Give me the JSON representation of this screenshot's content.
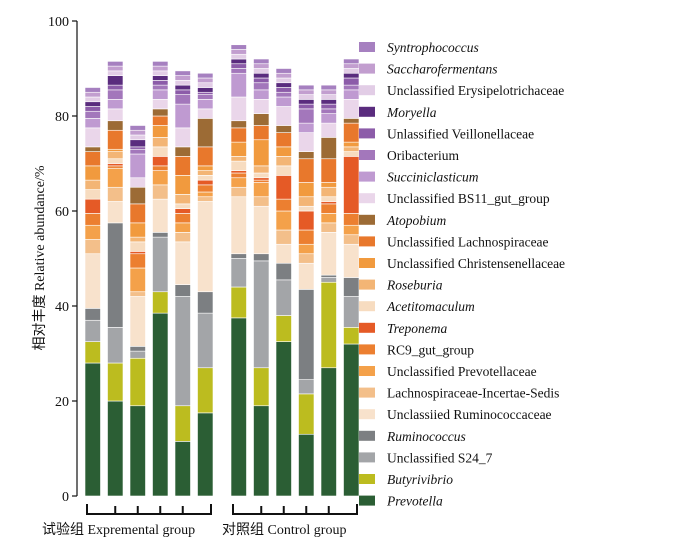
{
  "chart_data": {
    "type": "bar",
    "stacked": true,
    "ylabel": "相对丰度  Relative abundance/%",
    "ylim": [
      0,
      100
    ],
    "yticks": [
      0,
      20,
      40,
      60,
      80,
      100
    ],
    "groups": [
      {
        "label": "试验组  Expremental group",
        "bars": 6
      },
      {
        "label": "对照组  Control group",
        "bars": 6
      }
    ],
    "legend_position": "right",
    "series": [
      {
        "name": "Prevotella",
        "italic": true,
        "color": "#2b5e34",
        "values": [
          28,
          20,
          19,
          38.5,
          11.5,
          17.5,
          37.5,
          19,
          32.5,
          13,
          27,
          32
        ]
      },
      {
        "name": "Butyrivibrio",
        "italic": true,
        "color": "#bcbc1f",
        "values": [
          4.5,
          8,
          10,
          4.5,
          7.5,
          9.5,
          6.5,
          8,
          5.5,
          8.5,
          18,
          3.5
        ]
      },
      {
        "name": "Unclassified S24_7",
        "italic": false,
        "color": "#a3a5a8",
        "values": [
          4.5,
          7.5,
          1.5,
          11.5,
          23,
          11.5,
          6,
          22.5,
          7.5,
          3,
          1,
          6.5
        ]
      },
      {
        "name": "Ruminococcus",
        "italic": true,
        "color": "#7c7f82",
        "values": [
          2.5,
          22,
          1,
          1,
          2.5,
          4.5,
          1,
          1.5,
          3.5,
          19,
          0.5,
          4
        ]
      },
      {
        "name": "Unclassiied Ruminococcaceae",
        "italic": false,
        "color": "#f8e2cc",
        "values": [
          11.5,
          4.5,
          10.5,
          7,
          9,
          19,
          12,
          10,
          4,
          5.5,
          9,
          7
        ]
      },
      {
        "name": "Lachnospiraceae-Incertae-Sedis",
        "italic": false,
        "color": "#f3bf8a",
        "values": [
          3,
          3,
          1,
          3,
          2,
          1,
          2,
          2,
          3,
          2,
          2,
          2
        ]
      },
      {
        "name": "Unclassified Prevotellaceae",
        "italic": false,
        "color": "#f4a14a",
        "values": [
          3,
          4,
          5,
          3,
          2,
          1,
          2,
          3,
          4,
          2,
          2,
          2
        ]
      },
      {
        "name": "RC9_gut_group",
        "italic": false,
        "color": "#ec7f30",
        "values": [
          2.5,
          0.5,
          3,
          1,
          2,
          1.5,
          1,
          0.5,
          2.5,
          3,
          2,
          2.5
        ]
      },
      {
        "name": "Treponema",
        "italic": true,
        "color": "#e55a26",
        "values": [
          3,
          0.5,
          0.5,
          2,
          1,
          1,
          0.5,
          0.5,
          5,
          4,
          0.5,
          12
        ]
      },
      {
        "name": "Acetitomaculum",
        "italic": true,
        "color": "#f7dcc0",
        "values": [
          2,
          1,
          2,
          2,
          1,
          1,
          2,
          1,
          2,
          1,
          1,
          1
        ]
      },
      {
        "name": "Roseburia",
        "italic": true,
        "color": "#f3b575",
        "values": [
          2,
          1.5,
          1,
          2,
          2,
          1,
          1,
          1.5,
          2,
          2,
          2,
          1
        ]
      },
      {
        "name": "Unclassified Christensenellaceae",
        "italic": false,
        "color": "#f19a3e",
        "values": [
          3,
          0.5,
          3,
          2.5,
          4,
          1,
          3,
          5.5,
          2,
          3,
          1,
          1
        ]
      },
      {
        "name": "Unclassified Lachnospiraceae",
        "italic": false,
        "color": "#e8782c",
        "values": [
          3,
          4,
          4,
          2,
          4,
          4,
          3,
          3,
          3,
          5,
          5,
          4
        ]
      },
      {
        "name": "Atopobium",
        "italic": true,
        "color": "#9c6b35",
        "values": [
          1,
          2,
          3.5,
          1.5,
          2,
          6,
          1.5,
          2.5,
          1.5,
          1.5,
          4.5,
          1
        ]
      },
      {
        "name": "Unclassified BS11_gut_group",
        "italic": false,
        "color": "#ead6ea",
        "values": [
          4,
          2.5,
          2,
          2,
          4,
          2,
          5,
          3,
          4,
          4,
          3,
          4
        ]
      },
      {
        "name": "Succiniclasticum",
        "italic": true,
        "color": "#bf9ad1",
        "values": [
          2,
          2,
          5,
          2,
          5,
          2,
          5,
          2,
          2,
          2,
          2,
          2
        ]
      },
      {
        "name": "Oribacterium",
        "italic": false,
        "color": "#a377bb",
        "values": [
          1.5,
          2,
          1,
          1,
          2,
          1,
          1,
          1.5,
          1,
          3,
          1,
          1
        ]
      },
      {
        "name": "Unlassified Veillonellaceae",
        "italic": false,
        "color": "#8c5ca9",
        "values": [
          1,
          1,
          0.5,
          1,
          1,
          0.5,
          1,
          1,
          1,
          1,
          1,
          1.5
        ]
      },
      {
        "name": "Moryella",
        "italic": true,
        "color": "#5a2c7e",
        "values": [
          1,
          2,
          1.5,
          1,
          1,
          1,
          1,
          1,
          1,
          1,
          1,
          1
        ]
      },
      {
        "name": "Unclassified Erysipelotrichaceae",
        "italic": false,
        "color": "#e2cde6",
        "values": [
          1,
          1,
          1,
          1,
          1,
          1,
          1,
          1,
          1,
          1,
          1,
          1
        ]
      },
      {
        "name": "Saccharofermentans",
        "italic": true,
        "color": "#c29ecf",
        "values": [
          1,
          1,
          1,
          1,
          1,
          1,
          1,
          1,
          1,
          1,
          1,
          1
        ]
      },
      {
        "name": "Syntrophococcus",
        "italic": true,
        "color": "#a680c0",
        "values": [
          1,
          1,
          1,
          1,
          1,
          1,
          1,
          1,
          1,
          1,
          1,
          1
        ]
      }
    ]
  }
}
